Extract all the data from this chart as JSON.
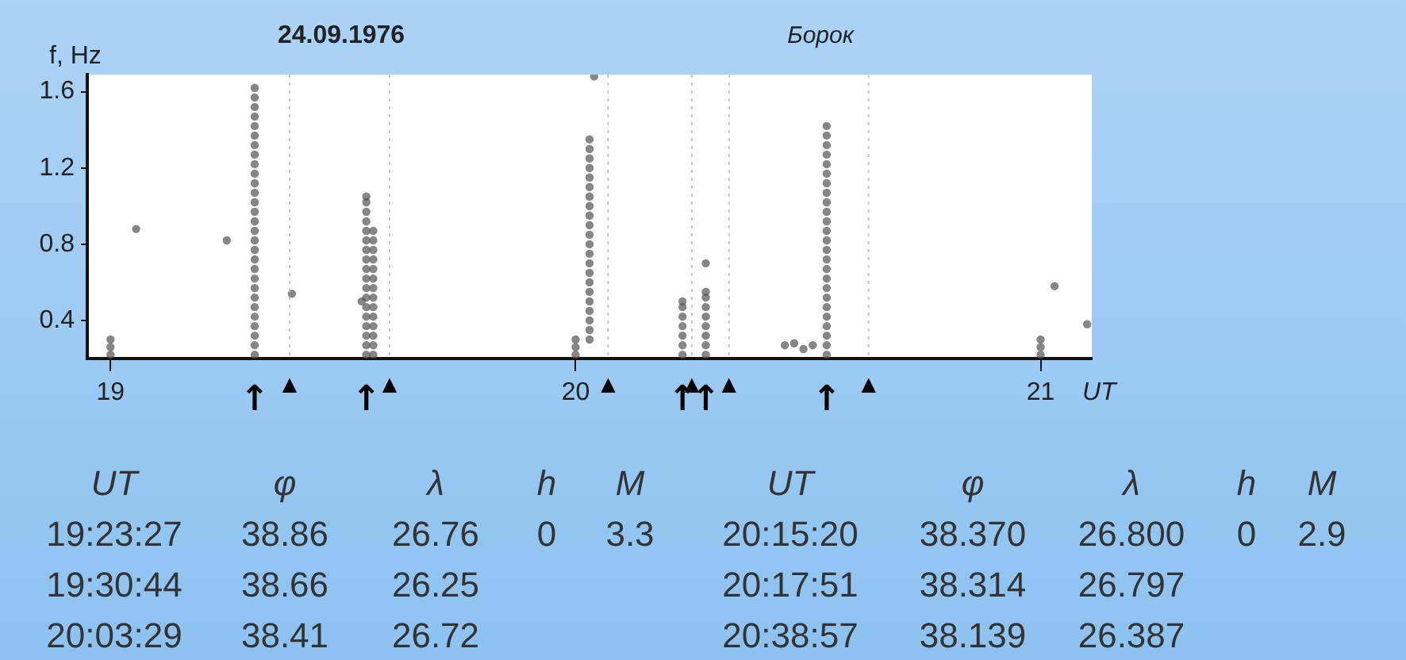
{
  "chart_data": {
    "type": "scatter",
    "title": "24.09.1976",
    "subtitle": "Борок",
    "xlabel": "UT",
    "ylabel": "f, Hz",
    "xlim": [
      18.95,
      21.11
    ],
    "xticks": [
      19,
      20,
      21
    ],
    "ylim": [
      0.2,
      1.69
    ],
    "yticks": [
      0.4,
      0.8,
      1.2,
      1.6
    ],
    "grid": false,
    "legend": false,
    "marker": "circle",
    "series": [
      {
        "color": "#505050",
        "x": [
          19.0,
          19.0,
          19.0,
          19.055,
          19.25,
          19.31,
          19.31,
          19.31,
          19.31,
          19.31,
          19.31,
          19.31,
          19.31,
          19.31,
          19.31,
          19.31,
          19.31,
          19.31,
          19.31,
          19.31,
          19.31,
          19.31,
          19.31,
          19.31,
          19.31,
          19.31,
          19.31,
          19.31,
          19.31,
          19.31,
          19.31,
          19.31,
          19.31,
          19.31,
          19.39,
          19.54,
          19.55,
          19.55,
          19.55,
          19.55,
          19.55,
          19.55,
          19.55,
          19.55,
          19.55,
          19.55,
          19.55,
          19.55,
          19.55,
          19.55,
          19.55,
          19.55,
          19.55,
          19.55,
          19.565,
          19.565,
          19.565,
          19.565,
          19.565,
          19.565,
          19.565,
          19.565,
          19.565,
          19.565,
          19.565,
          19.565,
          19.565,
          19.565,
          20.0,
          20.0,
          20.0,
          20.03,
          20.03,
          20.03,
          20.03,
          20.03,
          20.03,
          20.03,
          20.03,
          20.03,
          20.03,
          20.03,
          20.03,
          20.03,
          20.03,
          20.03,
          20.03,
          20.03,
          20.03,
          20.03,
          20.03,
          20.03,
          20.03,
          20.04,
          20.23,
          20.23,
          20.23,
          20.23,
          20.23,
          20.23,
          20.23,
          20.28,
          20.28,
          20.28,
          20.28,
          20.28,
          20.28,
          20.28,
          20.28,
          20.28,
          20.45,
          20.47,
          20.49,
          20.51,
          20.54,
          20.54,
          20.54,
          20.54,
          20.54,
          20.54,
          20.54,
          20.54,
          20.54,
          20.54,
          20.54,
          20.54,
          20.54,
          20.54,
          20.54,
          20.54,
          20.54,
          20.54,
          20.54,
          20.54,
          20.54,
          20.54,
          20.54,
          20.54,
          20.54,
          21.0,
          21.0,
          21.0,
          21.03,
          21.1
        ],
        "values": [
          0.22,
          0.26,
          0.3,
          0.88,
          0.82,
          0.22,
          0.27,
          0.32,
          0.37,
          0.42,
          0.47,
          0.52,
          0.57,
          0.62,
          0.67,
          0.72,
          0.77,
          0.82,
          0.87,
          0.92,
          0.97,
          1.02,
          1.07,
          1.12,
          1.17,
          1.22,
          1.27,
          1.32,
          1.37,
          1.42,
          1.47,
          1.52,
          1.57,
          1.62,
          0.54,
          0.5,
          0.22,
          0.27,
          0.32,
          0.37,
          0.42,
          0.47,
          0.52,
          0.57,
          0.62,
          0.67,
          0.72,
          0.77,
          0.82,
          0.87,
          0.92,
          0.97,
          1.02,
          1.05,
          0.22,
          0.27,
          0.32,
          0.37,
          0.42,
          0.47,
          0.52,
          0.57,
          0.62,
          0.67,
          0.72,
          0.77,
          0.82,
          0.87,
          0.22,
          0.26,
          0.3,
          0.3,
          0.35,
          0.4,
          0.45,
          0.5,
          0.55,
          0.6,
          0.65,
          0.7,
          0.75,
          0.8,
          0.85,
          0.9,
          0.95,
          1.0,
          1.05,
          1.1,
          1.15,
          1.2,
          1.25,
          1.3,
          1.35,
          1.68,
          0.22,
          0.27,
          0.32,
          0.37,
          0.42,
          0.47,
          0.5,
          0.22,
          0.27,
          0.32,
          0.37,
          0.42,
          0.47,
          0.52,
          0.55,
          0.7,
          0.27,
          0.28,
          0.25,
          0.27,
          0.22,
          0.27,
          0.32,
          0.37,
          0.42,
          0.47,
          0.52,
          0.57,
          0.62,
          0.67,
          0.72,
          0.77,
          0.82,
          0.87,
          0.92,
          0.97,
          1.02,
          1.07,
          1.12,
          1.17,
          1.22,
          1.27,
          1.32,
          1.37,
          1.42,
          0.22,
          0.26,
          0.3,
          0.58,
          0.38
        ]
      }
    ],
    "ref_lines": [
      {
        "axis": "x",
        "value": 19.385,
        "label": "▲"
      },
      {
        "axis": "x",
        "value": 19.6,
        "label": "▲"
      },
      {
        "axis": "x",
        "value": 20.07,
        "label": "▲"
      },
      {
        "axis": "x",
        "value": 20.25,
        "label": "▲"
      },
      {
        "axis": "x",
        "value": 20.33,
        "label": "▲"
      },
      {
        "axis": "x",
        "value": 20.63,
        "label": "▲"
      }
    ],
    "annotations": [
      {
        "text": "↑",
        "x": 19.31,
        "y": 0.22
      },
      {
        "text": "↑",
        "x": 19.55,
        "y": 0.22
      },
      {
        "text": "↑",
        "x": 20.23,
        "y": 0.22
      },
      {
        "text": "↑",
        "x": 20.28,
        "y": 0.22
      },
      {
        "text": "↑",
        "x": 20.54,
        "y": 0.22
      },
      "UT φ λ h M",
      "19:23:27 38.86 26.76 0 3.3",
      "19:30:44 38.66 26.25",
      "20:03:29 38.41 26.72",
      "UT φ λ h M",
      "20:15:20 38.370 26.800 0 2.9",
      "20:17:51 38.314 26.797",
      "20:38:57 38.139 26.387"
    ]
  }
}
